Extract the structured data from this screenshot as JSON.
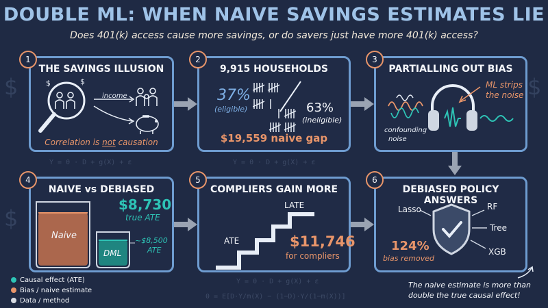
{
  "title": "DOUBLE ML: WHEN NAIVE SAVINGS ESTIMATES LIE",
  "subtitle": "Does 401(k) access cause more savings, or do savers just have more 401(k) access?",
  "background_formulas": {
    "f1": "Y = θ · D + g(X) + ε",
    "f2": "Y = θ · D + g(X) + ε",
    "f3": "Y = θ · D + g(X) + ε",
    "f4": "θ = E[D·Y/m(X) − (1−D)·Y/(1−m(X))]"
  },
  "panels": [
    {
      "number": "1",
      "title": "THE SAVINGS ILLUSION",
      "income_label": "income",
      "caption_pre": "Correlation is ",
      "caption_emph": "not",
      "caption_post": " causation"
    },
    {
      "number": "2",
      "title": "9,915 HOUSEHOLDS",
      "eligible_pct": "37%",
      "eligible_label": "(eligible)",
      "ineligible_pct": "63%",
      "ineligible_label": "(ineligible)",
      "gap": "$19,559 naive gap"
    },
    {
      "number": "3",
      "title": "PARTIALLING OUT BIAS",
      "ml_line1": "ML strips",
      "ml_line2": "the noise",
      "noise_line1": "confounding",
      "noise_line2": "noise"
    },
    {
      "number": "4",
      "title": "NAIVE vs DEBIASED",
      "ate_value": "$8,730",
      "ate_label": "true ATE",
      "naive_label": "Naive",
      "dml_label": "DML",
      "dml_value": "~$8,500",
      "dml_value_label": "ATE"
    },
    {
      "number": "5",
      "title": "COMPLIERS GAIN MORE",
      "late_label": "LATE",
      "ate_label": "ATE",
      "compliers_value": "$11,746",
      "compliers_label": "for compliers"
    },
    {
      "number": "6",
      "title": "DEBIASED POLICY ANSWERS",
      "lasso": "Lasso",
      "rf": "RF",
      "tree": "Tree",
      "xgb": "XGB",
      "bias_pct": "124%",
      "bias_label": "bias removed"
    }
  ],
  "legend": [
    {
      "label": "Causal effect (ATE)",
      "color": "#2ec4b6"
    },
    {
      "label": "Bias / naive estimate",
      "color": "#e8956a"
    },
    {
      "label": "Data / method",
      "color": "#d9dde4"
    }
  ],
  "footer_note": {
    "line1": "The naive estimate is more than",
    "line2": "double the true causal effect!"
  },
  "colors": {
    "background": "#1f2a44",
    "panel_border": "#6e9cd0",
    "accent_orange": "#e8956a",
    "accent_teal": "#2ec4b6",
    "accent_blue": "#7fb0e6"
  }
}
